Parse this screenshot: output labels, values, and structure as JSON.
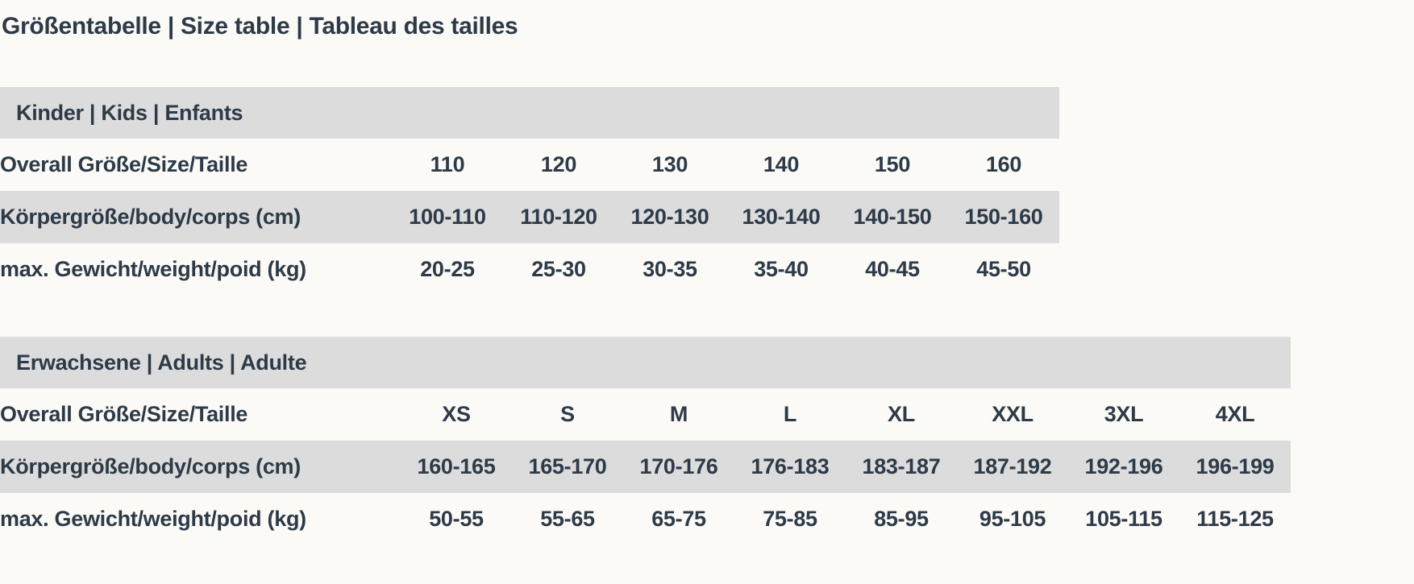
{
  "page": {
    "title": "Größentabelle | Size table | Tableau des tailles"
  },
  "colors": {
    "text": "#2d3a48",
    "row_band": "#dcdcdc",
    "background": "#fbfaf7"
  },
  "tables": [
    {
      "id": "kids",
      "header": "Kinder | Kids | Enfants",
      "rows": [
        {
          "label": "Overall Größe/Size/Taille",
          "values": [
            "110",
            "120",
            "130",
            "140",
            "150",
            "160"
          ]
        },
        {
          "label": "Körpergröße/body/corps (cm)",
          "values": [
            "100-110",
            "110-120",
            "120-130",
            "130-140",
            "140-150",
            "150-160"
          ]
        },
        {
          "label": "max. Gewicht/weight/poid (kg)",
          "values": [
            "20-25",
            "25-30",
            "30-35",
            "35-40",
            "40-45",
            "45-50"
          ]
        }
      ]
    },
    {
      "id": "adults",
      "header": "Erwachsene | Adults | Adulte",
      "rows": [
        {
          "label": "Overall Größe/Size/Taille",
          "values": [
            "XS",
            "S",
            "M",
            "L",
            "XL",
            "XXL",
            "3XL",
            "4XL"
          ]
        },
        {
          "label": "Körpergröße/body/corps (cm)",
          "values": [
            "160-165",
            "165-170",
            "170-176",
            "176-183",
            "183-187",
            "187-192",
            "192-196",
            "196-199"
          ]
        },
        {
          "label": "max. Gewicht/weight/poid (kg)",
          "values": [
            "50-55",
            "55-65",
            "65-75",
            "75-85",
            "85-95",
            "95-105",
            "105-115",
            "115-125"
          ]
        }
      ]
    }
  ]
}
